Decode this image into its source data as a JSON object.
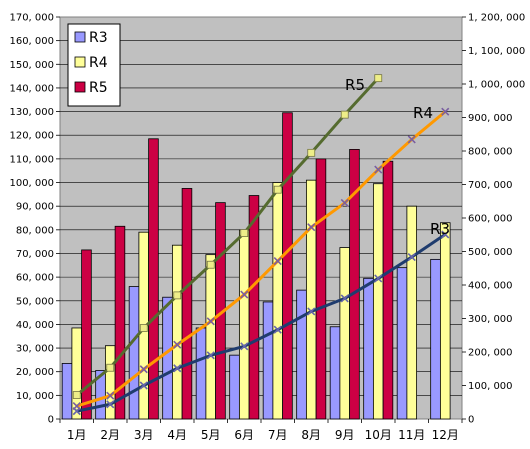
{
  "chart_data": {
    "type": "bar+line",
    "categories": [
      "1月",
      "2月",
      "3月",
      "4月",
      "5月",
      "6月",
      "7月",
      "8月",
      "9月",
      "10月",
      "11月",
      "12月"
    ],
    "bar_series": [
      {
        "name": "R3",
        "color": "#9999ff",
        "values": [
          23500,
          20500,
          56000,
          51500,
          38500,
          27000,
          49500,
          54500,
          39000,
          59500,
          64000,
          67500
        ]
      },
      {
        "name": "R4",
        "color": "#ffff99",
        "values": [
          38500,
          31000,
          79000,
          73500,
          69500,
          80000,
          100000,
          101000,
          72500,
          99500,
          90000,
          83000
        ]
      },
      {
        "name": "R5",
        "color": "#cc0044",
        "values": [
          71500,
          81500,
          118500,
          97500,
          91500,
          94500,
          129500,
          110000,
          114000,
          109000,
          null,
          null
        ]
      }
    ],
    "line_series": [
      {
        "name": "R3",
        "color": "#1f3c6e",
        "marker": "#6666aa",
        "values": [
          23500,
          44000,
          100000,
          151500,
          190000,
          217000,
          266500,
          321000,
          360000,
          419500,
          483500,
          551000
        ]
      },
      {
        "name": "R4",
        "color": "#ff9900",
        "marker": "#7a5fa0",
        "values": [
          38500,
          69500,
          148500,
          222000,
          291500,
          371500,
          471500,
          572500,
          645000,
          744500,
          834500,
          917500
        ]
      },
      {
        "name": "R5",
        "color": "#556b2f",
        "marker": "#eeee88",
        "values": [
          71500,
          153000,
          271500,
          369000,
          460500,
          555000,
          684500,
          794500,
          908500,
          1017500,
          null,
          null
        ]
      }
    ],
    "line_end_labels": [
      "R3",
      "R4",
      "R5"
    ],
    "y_left": {
      "min": 0,
      "max": 170000,
      "ticks": [
        "0",
        "10, 000",
        "20, 000",
        "30, 000",
        "40, 000",
        "50, 000",
        "60, 000",
        "70, 000",
        "80, 000",
        "90, 000",
        "100, 000",
        "110, 000",
        "120, 000",
        "130, 000",
        "140, 000",
        "150, 000",
        "160, 000",
        "170, 000"
      ]
    },
    "y_right": {
      "min": 0,
      "max": 1200000,
      "ticks": [
        "0",
        "100, 000",
        "200, 000",
        "300, 000",
        "400, 000",
        "500, 000",
        "600, 000",
        "700, 000",
        "800, 000",
        "900, 000",
        "1, 000, 000",
        "1, 100, 000",
        "1, 200, 000"
      ]
    },
    "legend": {
      "position": "top-left",
      "entries": [
        "R3",
        "R4",
        "R5"
      ]
    },
    "plot_background": "#c0c0c0",
    "grid": true,
    "title": "",
    "xlabel": "",
    "ylabel": ""
  }
}
